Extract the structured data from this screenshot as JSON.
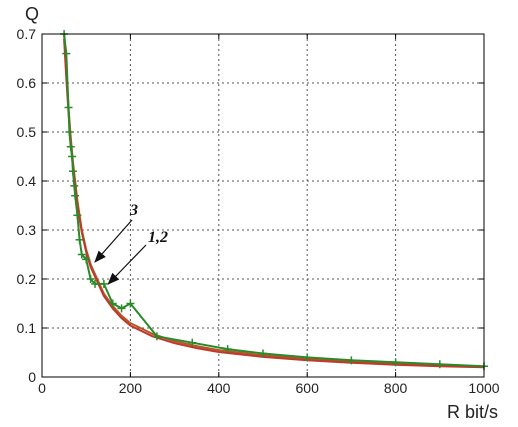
{
  "chart_data": {
    "type": "line",
    "title": "",
    "xlabel": "R bit/s",
    "ylabel": "Q",
    "xlim": [
      0,
      1000
    ],
    "ylim": [
      0,
      0.7
    ],
    "x_ticks": [
      0,
      200,
      400,
      600,
      800,
      1000
    ],
    "y_ticks": [
      0,
      0.1,
      0.2,
      0.3,
      0.4,
      0.5,
      0.6,
      0.7
    ],
    "grid": true,
    "series": [
      {
        "color": "#2a8a2a",
        "marker": "+",
        "x": [
          50,
          55,
          60,
          62,
          65,
          68,
          70,
          73,
          75,
          80,
          85,
          90,
          100,
          110,
          120,
          140,
          160,
          180,
          200,
          260,
          340,
          420,
          500,
          600,
          700,
          800,
          900,
          1000
        ],
        "y": [
          0.7,
          0.66,
          0.55,
          0.5,
          0.47,
          0.45,
          0.42,
          0.39,
          0.37,
          0.33,
          0.28,
          0.25,
          0.24,
          0.2,
          0.19,
          0.19,
          0.15,
          0.14,
          0.15,
          0.083,
          0.07,
          0.057,
          0.048,
          0.04,
          0.034,
          0.03,
          0.026,
          0.022
        ]
      },
      {
        "color": "#b05a2a",
        "marker": "none",
        "x": [
          50,
          55,
          60,
          65,
          70,
          80,
          90,
          100,
          110,
          120,
          140,
          160,
          180,
          200,
          250,
          300,
          350,
          400,
          500,
          600,
          700,
          800,
          900,
          1000
        ],
        "y": [
          0.7,
          0.62,
          0.55,
          0.49,
          0.44,
          0.36,
          0.3,
          0.26,
          0.23,
          0.21,
          0.17,
          0.145,
          0.125,
          0.11,
          0.088,
          0.073,
          0.063,
          0.055,
          0.044,
          0.037,
          0.031,
          0.027,
          0.024,
          0.021
        ]
      },
      {
        "color": "#c0392b",
        "marker": "none",
        "x": [
          50,
          55,
          60,
          65,
          70,
          80,
          90,
          100,
          110,
          120,
          140,
          160,
          180,
          200,
          250,
          300,
          350,
          400,
          500,
          600,
          700,
          800,
          900,
          1000
        ],
        "y": [
          0.69,
          0.61,
          0.54,
          0.48,
          0.43,
          0.35,
          0.295,
          0.255,
          0.225,
          0.205,
          0.165,
          0.14,
          0.12,
          0.105,
          0.083,
          0.069,
          0.059,
          0.051,
          0.041,
          0.034,
          0.029,
          0.025,
          0.022,
          0.02
        ]
      }
    ],
    "annotations": [
      {
        "text": "3",
        "arrow_to": [
          120,
          0.235
        ]
      },
      {
        "text": "1,2",
        "arrow_to": [
          150,
          0.19
        ]
      }
    ]
  }
}
